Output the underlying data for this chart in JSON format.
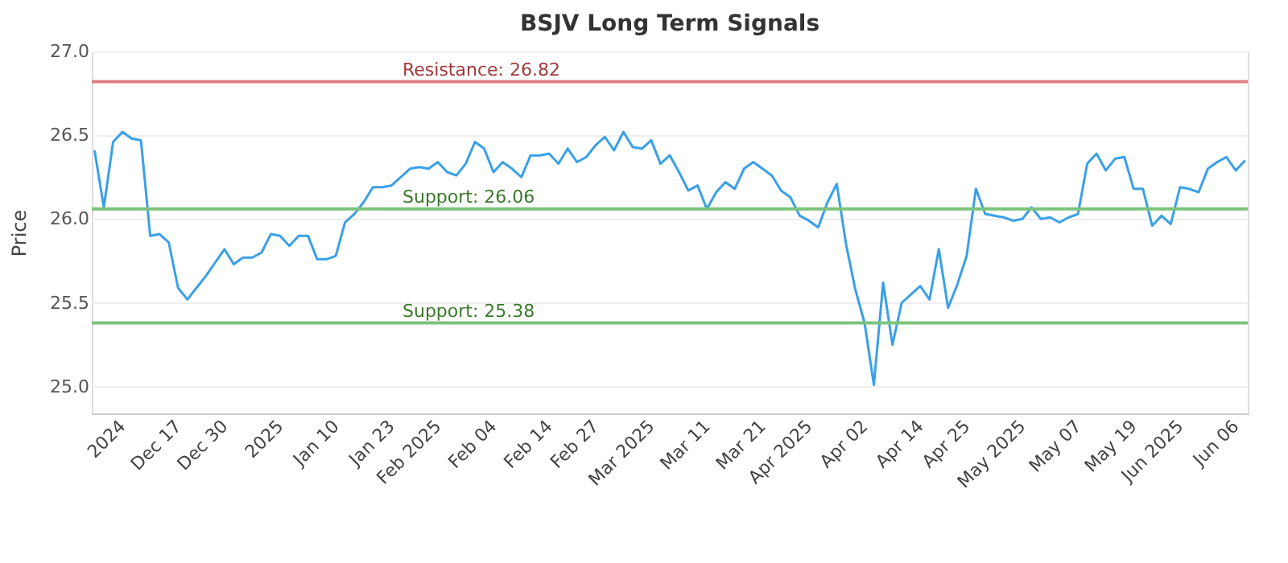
{
  "chart_data": {
    "type": "line",
    "title": "BSJV Long Term Signals",
    "ylabel": "Price",
    "categories": [
      null,
      null,
      null,
      "2024",
      null,
      null,
      null,
      null,
      null,
      "Dec 17",
      null,
      null,
      null,
      null,
      "Dec 30",
      null,
      null,
      null,
      null,
      null,
      "2025",
      null,
      null,
      null,
      null,
      null,
      "Jan 10",
      null,
      null,
      null,
      null,
      null,
      "Jan 23",
      null,
      null,
      null,
      null,
      "Feb 2025",
      null,
      null,
      null,
      null,
      null,
      "Feb 04",
      null,
      null,
      null,
      null,
      null,
      "Feb 14",
      null,
      null,
      null,
      null,
      "Feb 27",
      null,
      null,
      null,
      null,
      null,
      "Mar 2025",
      null,
      null,
      null,
      null,
      null,
      "Mar 11",
      null,
      null,
      null,
      null,
      null,
      "Mar 21",
      null,
      null,
      null,
      null,
      "Apr 2025",
      null,
      null,
      null,
      null,
      null,
      "Apr 02",
      null,
      null,
      null,
      null,
      null,
      "Apr 14",
      null,
      null,
      null,
      null,
      "Apr 25",
      null,
      null,
      null,
      null,
      null,
      "May 2025",
      null,
      null,
      null,
      null,
      null,
      "May 07",
      null,
      null,
      null,
      null,
      null,
      "May 19",
      null,
      null,
      null,
      null,
      "Jun 2025",
      null,
      null,
      null,
      null,
      null,
      "Jun 06",
      null
    ],
    "series": [
      {
        "color": "#3aa0e8",
        "values": [
          26.41,
          26.07,
          26.46,
          26.52,
          26.48,
          26.47,
          25.9,
          25.91,
          25.86,
          25.59,
          25.52,
          25.59,
          25.66,
          25.74,
          25.82,
          25.73,
          25.77,
          25.77,
          25.8,
          25.91,
          25.9,
          25.84,
          25.9,
          25.9,
          25.76,
          25.76,
          25.78,
          25.98,
          26.03,
          26.1,
          26.19,
          26.19,
          26.2,
          26.25,
          26.3,
          26.31,
          26.3,
          26.34,
          26.28,
          26.26,
          26.33,
          26.46,
          26.42,
          26.28,
          26.34,
          26.3,
          26.25,
          26.38,
          26.38,
          26.39,
          26.33,
          26.42,
          26.34,
          26.37,
          26.44,
          26.49,
          26.41,
          26.52,
          26.43,
          26.42,
          26.47,
          26.33,
          26.38,
          26.28,
          26.17,
          26.2,
          26.06,
          26.16,
          26.22,
          26.18,
          26.3,
          26.34,
          26.3,
          26.26,
          26.17,
          26.13,
          26.02,
          25.99,
          25.95,
          26.1,
          26.21,
          25.85,
          25.58,
          25.38,
          25.01,
          25.62,
          25.25,
          25.5,
          25.55,
          25.6,
          25.52,
          25.82,
          25.47,
          25.61,
          25.78,
          26.18,
          26.03,
          26.02,
          26.01,
          25.99,
          26.0,
          26.07,
          26.0,
          26.01,
          25.98,
          26.01,
          26.03,
          26.33,
          26.39,
          26.29,
          26.36,
          26.37,
          26.18,
          26.18,
          25.96,
          26.02,
          25.97,
          26.19,
          26.18,
          26.16,
          26.3,
          26.34,
          26.37,
          26.29,
          26.35
        ]
      }
    ],
    "ylim": [
      24.84,
      27.0
    ],
    "yticks": [
      {
        "value": 25,
        "label": "25.0"
      },
      {
        "value": 25.5,
        "label": "25.5"
      },
      {
        "value": 26,
        "label": "26.0"
      },
      {
        "value": 26.5,
        "label": "26.5"
      },
      {
        "value": 27,
        "label": "27.0"
      }
    ],
    "ref_lines": [
      {
        "axis": "y",
        "value": 26.82,
        "label": "Resistance: 26.82",
        "color": "#e08080"
      },
      {
        "axis": "y",
        "value": 26.06,
        "label": "Support: 26.06",
        "color": "#7cc47c"
      },
      {
        "axis": "y",
        "value": 25.38,
        "label": "Support: 25.38",
        "color": "#7cc47c"
      }
    ],
    "grid": "y",
    "marker": "none",
    "line_style": "solid"
  }
}
